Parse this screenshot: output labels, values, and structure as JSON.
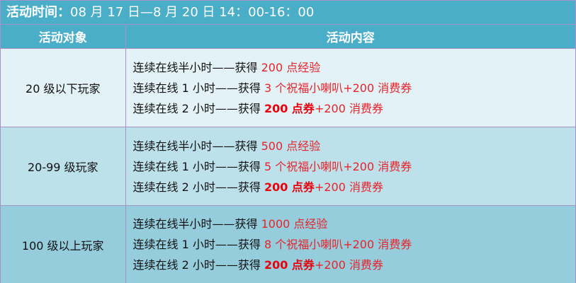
{
  "title": {
    "label": "活动时间：",
    "value": "08 月 17 日—8 月 20 日 14：00-16：00"
  },
  "headers": [
    "活动对象",
    "活动内容"
  ],
  "colors": {
    "header_bg": "#4aaec8",
    "reward_red": "#e8232a",
    "row_bg": [
      "#e3f2f6",
      "#bde1eb",
      "#95cddd"
    ]
  },
  "rows": [
    {
      "target": "20 级以下玩家",
      "lines": [
        {
          "condition": "连续在线半小时——获得 ",
          "bold": "",
          "reward": "200 点经验"
        },
        {
          "condition": "连续在线 1 小时——获得 ",
          "bold": "",
          "reward": "3 个祝福小喇叭+200 消费券"
        },
        {
          "condition": "连续在线 2 小时——获得 ",
          "bold": "200 点券",
          "reward": "+200 消费券"
        }
      ]
    },
    {
      "target": "20-99 级玩家",
      "lines": [
        {
          "condition": "连续在线半小时——获得 ",
          "bold": "",
          "reward": "500 点经验"
        },
        {
          "condition": "连续在线 1 小时——获得 ",
          "bold": "",
          "reward": "5 个祝福小喇叭+200 消费券"
        },
        {
          "condition": "连续在线 2 小时——获得 ",
          "bold": "200 点券",
          "reward": "+200 消费券"
        }
      ]
    },
    {
      "target": "100 级以上玩家",
      "lines": [
        {
          "condition": "连续在线半小时——获得 ",
          "bold": "",
          "reward": "1000 点经验"
        },
        {
          "condition": "连续在线 1 小时——获得 ",
          "bold": "",
          "reward": "8 个祝福小喇叭+200 消费券"
        },
        {
          "condition": "连续在线 2 小时——获得 ",
          "bold": "200 点券",
          "reward": "+200 消费券"
        }
      ]
    }
  ]
}
